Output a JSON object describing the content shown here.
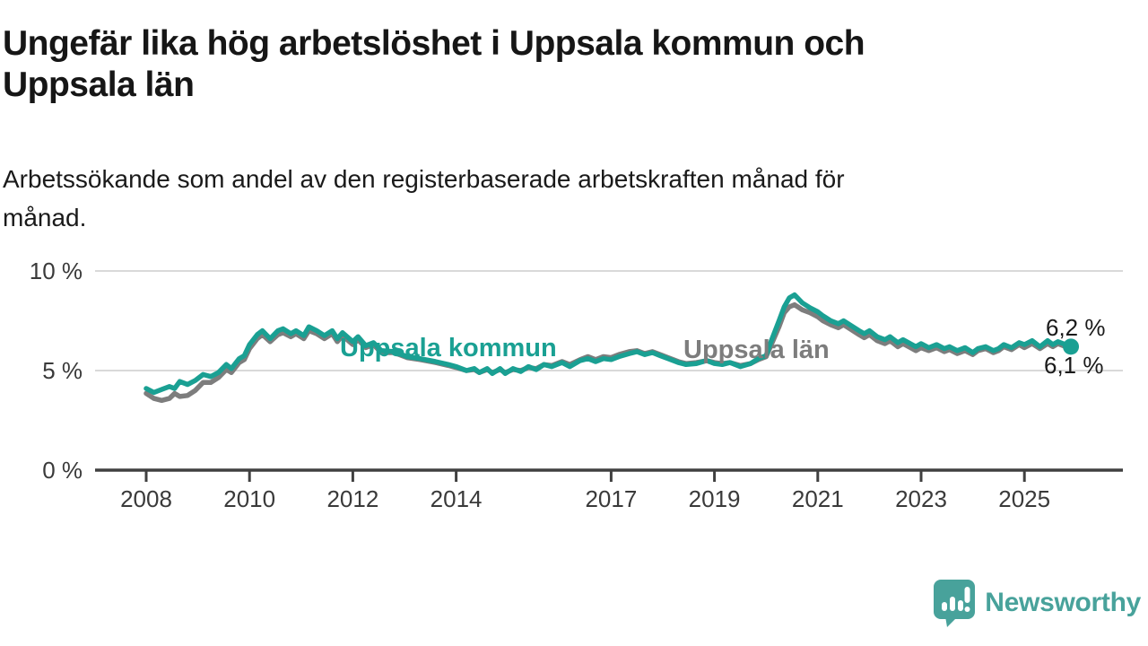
{
  "header": {
    "title_lines": [
      "Ungefär lika hög arbetslöshet i Uppsala kommun och",
      "Uppsala län"
    ],
    "subtitle_lines": [
      "Arbetssökande som andel av den registerbaserade arbetskraften månad för",
      "månad."
    ]
  },
  "colors": {
    "kommun_line": "#1aa093",
    "lan_line": "#7d7d7d",
    "axis": "#404040",
    "grid": "#d9d9d9",
    "tick_text": "#3a3a3a",
    "value_text": "#1a1a1a",
    "brand_teal": "#48a29b"
  },
  "annotations": {
    "kommun_label": "Uppsala kommun",
    "lan_label": "Uppsala län",
    "kommun_end_value": "6,2 %",
    "lan_end_value": "6,1 %"
  },
  "footer": {
    "brand": "Newsworthy"
  },
  "chart_data": {
    "type": "line",
    "title": "Ungefär lika hög arbetslöshet i Uppsala kommun och Uppsala län",
    "subtitle": "Arbetssökande som andel av den registerbaserade arbetskraften månad för månad.",
    "xlabel": "",
    "ylabel": "",
    "ylim": [
      0,
      10.5
    ],
    "xlim": [
      2007.0,
      2026.2
    ],
    "grid": "horizontal",
    "legend": "inline-labels-on-lines",
    "yticks": [
      0,
      5,
      10
    ],
    "ytick_labels": [
      "0 %",
      "5 %",
      "10 %"
    ],
    "xticks": [
      2008,
      2010,
      2012,
      2014,
      2017,
      2019,
      2021,
      2023,
      2025
    ],
    "xtick_labels": [
      "2008",
      "2010",
      "2012",
      "2014",
      "2017",
      "2019",
      "2021",
      "2023",
      "2025"
    ],
    "x": [
      2008.0,
      2008.15,
      2008.3,
      2008.45,
      2008.55,
      2008.65,
      2008.8,
      2008.95,
      2009.1,
      2009.25,
      2009.4,
      2009.55,
      2009.65,
      2009.8,
      2009.9,
      2010.0,
      2010.15,
      2010.25,
      2010.4,
      2010.55,
      2010.65,
      2010.8,
      2010.9,
      2011.05,
      2011.15,
      2011.3,
      2011.45,
      2011.6,
      2011.7,
      2011.8,
      2012.0,
      2012.1,
      2012.25,
      2012.4,
      2012.55,
      2012.8,
      2013.05,
      2013.3,
      2013.6,
      2013.85,
      2014.0,
      2014.2,
      2014.35,
      2014.45,
      2014.6,
      2014.7,
      2014.85,
      2014.95,
      2015.1,
      2015.25,
      2015.4,
      2015.55,
      2015.7,
      2015.85,
      2016.05,
      2016.2,
      2016.4,
      2016.55,
      2016.7,
      2016.85,
      2017.0,
      2017.15,
      2017.35,
      2017.5,
      2017.65,
      2017.8,
      2017.95,
      2018.1,
      2018.3,
      2018.45,
      2018.65,
      2018.85,
      2019.0,
      2019.15,
      2019.3,
      2019.5,
      2019.7,
      2019.85,
      2020.0,
      2020.1,
      2020.25,
      2020.35,
      2020.45,
      2020.55,
      2020.7,
      2020.85,
      2021.0,
      2021.1,
      2021.25,
      2021.4,
      2021.5,
      2021.65,
      2021.8,
      2021.9,
      2022.0,
      2022.15,
      2022.3,
      2022.4,
      2022.55,
      2022.65,
      2022.9,
      2023.0,
      2023.15,
      2023.3,
      2023.45,
      2023.55,
      2023.7,
      2023.85,
      2024.0,
      2024.1,
      2024.25,
      2024.4,
      2024.5,
      2024.6,
      2024.75,
      2024.9,
      2025.0,
      2025.15,
      2025.3,
      2025.45,
      2025.55,
      2025.65,
      2025.9
    ],
    "series": [
      {
        "name": "Uppsala län",
        "color": "#7d7d7d",
        "end_label": "6,1 %",
        "end_value": 6.1,
        "values": [
          3.85,
          3.6,
          3.5,
          3.6,
          3.85,
          3.7,
          3.75,
          4.0,
          4.4,
          4.4,
          4.65,
          5.05,
          4.9,
          5.4,
          5.55,
          6.1,
          6.6,
          6.8,
          6.45,
          6.8,
          6.9,
          6.7,
          6.85,
          6.6,
          7.0,
          6.85,
          6.6,
          6.85,
          6.45,
          6.75,
          6.3,
          6.55,
          6.15,
          6.3,
          5.9,
          5.9,
          5.65,
          5.55,
          5.4,
          5.25,
          5.15,
          5.0,
          5.05,
          4.9,
          5.05,
          4.9,
          5.05,
          4.9,
          5.05,
          5.0,
          5.15,
          5.1,
          5.3,
          5.25,
          5.45,
          5.3,
          5.55,
          5.7,
          5.55,
          5.7,
          5.65,
          5.8,
          5.95,
          6.0,
          5.85,
          5.95,
          5.8,
          5.65,
          5.45,
          5.35,
          5.4,
          5.5,
          5.4,
          5.35,
          5.4,
          5.25,
          5.35,
          5.55,
          5.7,
          6.3,
          7.2,
          7.9,
          8.2,
          8.3,
          8.05,
          7.9,
          7.7,
          7.5,
          7.3,
          7.15,
          7.3,
          7.05,
          6.8,
          6.65,
          6.8,
          6.5,
          6.35,
          6.5,
          6.2,
          6.35,
          6.0,
          6.15,
          6.0,
          6.15,
          5.95,
          6.05,
          5.85,
          6.0,
          5.8,
          6.0,
          6.1,
          5.9,
          6.0,
          6.2,
          6.05,
          6.3,
          6.15,
          6.35,
          6.1,
          6.35,
          6.2,
          6.35,
          6.1
        ]
      },
      {
        "name": "Uppsala kommun",
        "color": "#1aa093",
        "end_label": "6,2 %",
        "end_value": 6.2,
        "end_dot": true,
        "values": [
          4.1,
          3.9,
          4.05,
          4.2,
          4.1,
          4.45,
          4.3,
          4.5,
          4.8,
          4.7,
          4.9,
          5.3,
          5.1,
          5.6,
          5.75,
          6.3,
          6.8,
          7.0,
          6.6,
          7.0,
          7.1,
          6.85,
          7.0,
          6.75,
          7.2,
          7.0,
          6.75,
          7.0,
          6.6,
          6.9,
          6.45,
          6.7,
          6.25,
          6.4,
          6.0,
          5.95,
          5.7,
          5.6,
          5.45,
          5.3,
          5.2,
          5.0,
          5.1,
          4.9,
          5.1,
          4.85,
          5.1,
          4.85,
          5.1,
          4.95,
          5.2,
          5.05,
          5.3,
          5.2,
          5.4,
          5.2,
          5.5,
          5.6,
          5.45,
          5.6,
          5.55,
          5.7,
          5.85,
          5.95,
          5.8,
          5.9,
          5.75,
          5.6,
          5.4,
          5.3,
          5.35,
          5.5,
          5.35,
          5.3,
          5.4,
          5.2,
          5.35,
          5.6,
          5.75,
          6.5,
          7.5,
          8.2,
          8.65,
          8.8,
          8.4,
          8.15,
          7.95,
          7.75,
          7.5,
          7.35,
          7.5,
          7.25,
          7.0,
          6.85,
          7.0,
          6.7,
          6.55,
          6.7,
          6.4,
          6.55,
          6.2,
          6.35,
          6.15,
          6.3,
          6.1,
          6.2,
          6.0,
          6.15,
          5.9,
          6.1,
          6.2,
          6.0,
          6.1,
          6.3,
          6.15,
          6.4,
          6.3,
          6.5,
          6.2,
          6.5,
          6.3,
          6.45,
          6.2
        ]
      }
    ]
  }
}
